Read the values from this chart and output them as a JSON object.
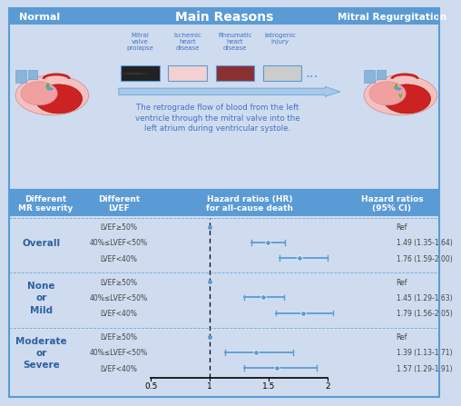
{
  "bg_color": "#cfdcef",
  "header_bg_color": "#5b9bd5",
  "plot_bg_color": "#dce8f5",
  "title_normal": "Normal",
  "title_main": "Main Reasons",
  "title_mr": "Mitral Regurgitation",
  "reasons": [
    "Mitral\nvalve\nprolapse",
    "Ischemic\nheart\ndisease",
    "Rheumatic\nheart\ndisease",
    "Iatrogenic\ninjury"
  ],
  "description": "The retrograde flow of blood from the left\nventricle through the mitral valve into the\nleft atrium during ventricular systole.",
  "col_headers": [
    "Different\nMR severity",
    "Different\nLVEF",
    "Hazard ratios (HR)\nfor all-cause death",
    "Hazard ratios\n(95% CI)"
  ],
  "groups": [
    {
      "label": "Overall",
      "rows": [
        {
          "lvef": "LVEF≥50%",
          "hr": null,
          "ci_lo": null,
          "ci_hi": null,
          "label": "Ref"
        },
        {
          "lvef": "40%≤LVEF<50%",
          "hr": 1.49,
          "ci_lo": 1.35,
          "ci_hi": 1.64,
          "label": "1.49 (1.35-1.64)"
        },
        {
          "lvef": "LVEF<40%",
          "hr": 1.76,
          "ci_lo": 1.59,
          "ci_hi": 2.0,
          "label": "1.76 (1.59-2.00)"
        }
      ]
    },
    {
      "label": "None\nor\nMild",
      "rows": [
        {
          "lvef": "LVEF≥50%",
          "hr": null,
          "ci_lo": null,
          "ci_hi": null,
          "label": "Ref"
        },
        {
          "lvef": "40%≤LVEF<50%",
          "hr": 1.45,
          "ci_lo": 1.29,
          "ci_hi": 1.63,
          "label": "1.45 (1.29-1.63)"
        },
        {
          "lvef": "LVEF<40%",
          "hr": 1.79,
          "ci_lo": 1.56,
          "ci_hi": 2.05,
          "label": "1.79 (1.56-2.05)"
        }
      ]
    },
    {
      "label": "Moderate\nor\nSevere",
      "rows": [
        {
          "lvef": "LVEF≥50%",
          "hr": null,
          "ci_lo": null,
          "ci_hi": null,
          "label": "Ref"
        },
        {
          "lvef": "40%≤LVEF<50%",
          "hr": 1.39,
          "ci_lo": 1.13,
          "ci_hi": 1.71,
          "label": "1.39 (1.13-1.71)"
        },
        {
          "lvef": "LVEF<40%",
          "hr": 1.57,
          "ci_lo": 1.29,
          "ci_hi": 1.91,
          "label": "1.57 (1.29-1.91)"
        }
      ]
    }
  ],
  "xmin": 0.5,
  "xmax": 2.0,
  "xticks": [
    0.5,
    1.0,
    1.5,
    2.0
  ],
  "xticklabels": [
    "0.5",
    "1",
    "1.5",
    "2"
  ],
  "point_color": "#5b9bd5",
  "ci_color": "#5b9bd5",
  "text_color": "#2e5fa3",
  "row_text_color": "#444444",
  "ref_dot_color": "#5b9bd5"
}
